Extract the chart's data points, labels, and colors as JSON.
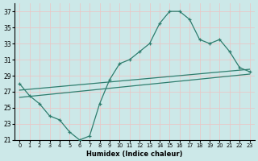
{
  "xlabel": "Humidex (Indice chaleur)",
  "bg_color": "#cce8e8",
  "grid_color": "#e8c8c8",
  "line_color": "#2e7d6e",
  "xlim": [
    -0.5,
    23.5
  ],
  "ylim": [
    21,
    38
  ],
  "yticks": [
    21,
    23,
    25,
    27,
    29,
    31,
    33,
    35,
    37
  ],
  "xticks": [
    0,
    1,
    2,
    3,
    4,
    5,
    6,
    7,
    8,
    9,
    10,
    11,
    12,
    13,
    14,
    15,
    16,
    17,
    18,
    19,
    20,
    21,
    22,
    23
  ],
  "curve1_x": [
    0,
    1,
    2,
    3,
    4,
    5,
    6,
    7,
    8,
    9,
    10,
    11,
    12,
    13,
    14,
    15,
    16,
    17,
    18,
    19,
    20,
    21,
    22,
    23
  ],
  "curve1_y": [
    28.0,
    26.5,
    25.5,
    24.0,
    23.5,
    22.0,
    21.0,
    21.5,
    25.5,
    28.5,
    30.5,
    31.0,
    32.0,
    33.0,
    35.5,
    37.0,
    37.0,
    36.0,
    33.5,
    33.0,
    33.5,
    32.0,
    30.0,
    29.5
  ],
  "curve2_x": [
    0,
    23
  ],
  "curve2_y": [
    27.2,
    29.8
  ],
  "curve3_x": [
    0,
    23
  ],
  "curve3_y": [
    26.3,
    29.2
  ]
}
